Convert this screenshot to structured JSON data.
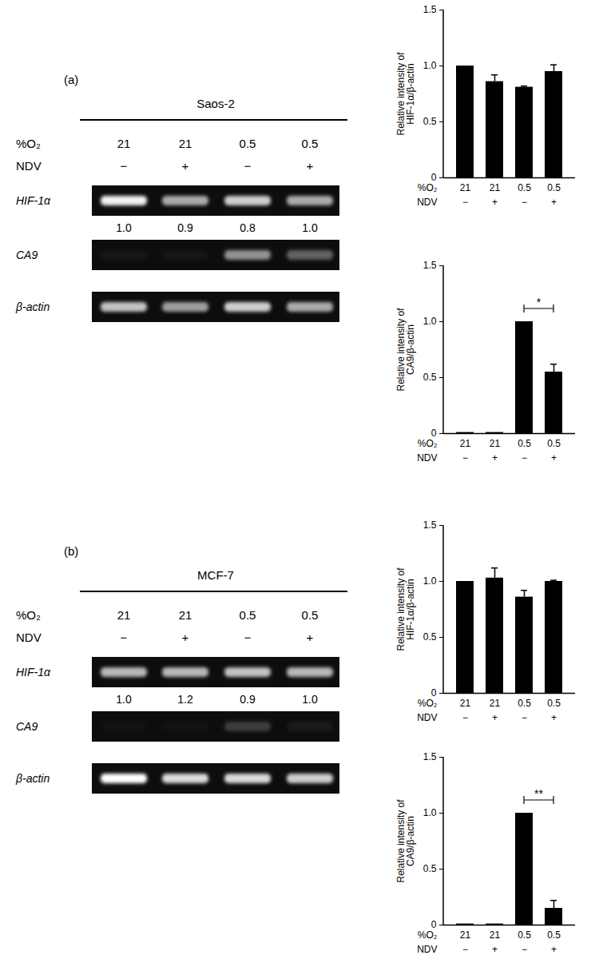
{
  "chart_data": [
    {
      "type": "bar",
      "y_label": "Relative intensity of\nHIF-1α/β-actin",
      "x_rows": [
        {
          "name": "%O₂",
          "labels": [
            "21",
            "21",
            "0.5",
            "0.5"
          ]
        },
        {
          "name": "NDV",
          "labels": [
            "−",
            "+",
            "−",
            "+"
          ]
        }
      ],
      "values": [
        1.0,
        0.86,
        0.81,
        0.95
      ],
      "errors": [
        0,
        0.06,
        0.01,
        0.06
      ],
      "color": "#000000",
      "ylim": [
        0,
        1.5
      ],
      "yticks": [
        0,
        0.5,
        {
          "value": 1,
          "label": "1.0"
        },
        1.5
      ],
      "significance": []
    },
    {
      "type": "bar",
      "y_label": "Relative intensity of\nCA9/β-actin",
      "x_rows": [
        {
          "name": "%O₂",
          "labels": [
            "21",
            "21",
            "0.5",
            "0.5"
          ]
        },
        {
          "name": "NDV",
          "labels": [
            "−",
            "+",
            "−",
            "+"
          ]
        }
      ],
      "values": [
        0.01,
        0.01,
        1.0,
        0.55
      ],
      "errors": [
        0,
        0,
        0,
        0.07
      ],
      "color": "#000000",
      "ylim": [
        0,
        1.5
      ],
      "yticks": [
        0,
        0.5,
        {
          "value": 1,
          "label": "1.0"
        },
        1.5
      ],
      "significance": [
        {
          "from": 2,
          "to": 3,
          "label": "*"
        }
      ]
    },
    {
      "type": "bar",
      "y_label": "Relative intensity of\nHIF-1α/β-actin",
      "x_rows": [
        {
          "name": "%O₂",
          "labels": [
            "21",
            "21",
            "0.5",
            "0.5"
          ]
        },
        {
          "name": "NDV",
          "labels": [
            "−",
            "+",
            "−",
            "+"
          ]
        }
      ],
      "values": [
        1.0,
        1.03,
        0.86,
        1.0
      ],
      "errors": [
        0,
        0.09,
        0.06,
        0.01
      ],
      "color": "#000000",
      "ylim": [
        0,
        1.5
      ],
      "yticks": [
        0,
        0.5,
        {
          "value": 1,
          "label": "1.0"
        },
        1.5
      ],
      "significance": []
    },
    {
      "type": "bar",
      "y_label": "Relative intensity of\nCA9/β-actin",
      "x_rows": [
        {
          "name": "%O₂",
          "labels": [
            "21",
            "21",
            "0.5",
            "0.5"
          ]
        },
        {
          "name": "NDV",
          "labels": [
            "−",
            "+",
            "−",
            "+"
          ]
        }
      ],
      "values": [
        0.01,
        0.01,
        1.0,
        0.15
      ],
      "errors": [
        0,
        0,
        0,
        0.07
      ],
      "color": "#000000",
      "ylim": [
        0,
        1.5
      ],
      "yticks": [
        0,
        0.5,
        {
          "value": 1,
          "label": "1.0"
        },
        1.5
      ],
      "significance": [
        {
          "from": 2,
          "to": 3,
          "label": "**"
        }
      ]
    }
  ],
  "gels": [
    {
      "label": "(a)",
      "title": "Saos-2",
      "rows": [
        {
          "name": "%O₂",
          "labels": [
            "21",
            "21",
            "0.5",
            "0.5"
          ]
        },
        {
          "name": "NDV",
          "labels": [
            "−",
            "+",
            "−",
            "+"
          ]
        }
      ],
      "bands": [
        {
          "gene": "HIF-1α",
          "intensity": [
            0.95,
            0.65,
            0.8,
            0.65
          ],
          "quantification": [
            1.0,
            0.9,
            0.8,
            1.0
          ],
          "quantification_labels": [
            "1.0",
            "0.9",
            "0.8",
            "1.0"
          ]
        },
        {
          "gene": "CA9",
          "intensity": [
            0.03,
            0.03,
            0.55,
            0.35
          ]
        },
        {
          "gene": "β-actin",
          "intensity": [
            0.75,
            0.6,
            0.8,
            0.65
          ]
        }
      ]
    },
    {
      "label": "(b)",
      "title": "MCF-7",
      "rows": [
        {
          "name": "%O₂",
          "labels": [
            "21",
            "21",
            "0.5",
            "0.5"
          ]
        },
        {
          "name": "NDV",
          "labels": [
            "−",
            "+",
            "−",
            "+"
          ]
        }
      ],
      "bands": [
        {
          "gene": "HIF-1α",
          "intensity": [
            0.7,
            0.7,
            0.75,
            0.7
          ],
          "quantification": [
            1.0,
            1.2,
            0.9,
            1.0
          ],
          "quantification_labels": [
            "1.0",
            "1.2",
            "0.9",
            "1.0"
          ]
        },
        {
          "gene": "CA9",
          "intensity": [
            0.02,
            0.02,
            0.2,
            0.05
          ]
        },
        {
          "gene": "β-actin",
          "intensity": [
            1.0,
            0.85,
            0.85,
            0.8
          ]
        }
      ]
    }
  ]
}
